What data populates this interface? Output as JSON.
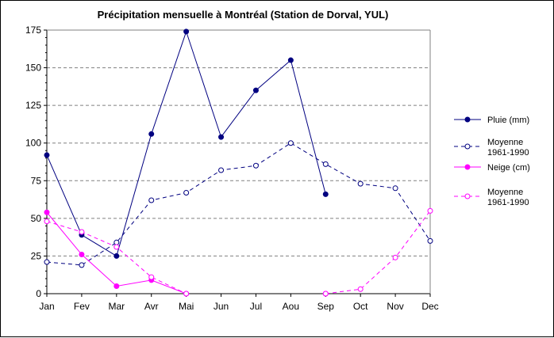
{
  "chart_data": {
    "type": "line",
    "title": "Précipitation mensuelle à Montréal (Station de Dorval, YUL)",
    "categories": [
      "Jan",
      "Fev",
      "Mar",
      "Avr",
      "Mai",
      "Jun",
      "Jul",
      "Aou",
      "Sep",
      "Oct",
      "Nov",
      "Dec"
    ],
    "ylim": [
      0,
      175
    ],
    "yticks": [
      0,
      25,
      50,
      75,
      100,
      125,
      150,
      175
    ],
    "ytick_labels": [
      "0",
      "25",
      "50",
      "75",
      "100",
      "125",
      "150",
      "175"
    ],
    "grid": "horizontal dashed",
    "legend_position": "right",
    "series": [
      {
        "name": "Pluie (mm)",
        "legend_lines": [
          "Pluie (mm)"
        ],
        "color": "#000080",
        "line_style": "solid",
        "marker": "filled-circle",
        "values": [
          92,
          39,
          25,
          106,
          174,
          104,
          135,
          155,
          66,
          null,
          null,
          null
        ]
      },
      {
        "name": "Moyenne 1961-1990",
        "legend_lines": [
          "Moyenne",
          "1961-1990"
        ],
        "color": "#000080",
        "line_style": "dashed",
        "marker": "open-circle",
        "values": [
          21,
          19,
          34,
          62,
          67,
          82,
          85,
          100,
          86,
          73,
          70,
          35
        ]
      },
      {
        "name": "Neige (cm)",
        "legend_lines": [
          "Neige (cm)"
        ],
        "color": "#ff00ff",
        "line_style": "solid",
        "marker": "filled-circle",
        "values": [
          54,
          26,
          5,
          9,
          0,
          null,
          null,
          null,
          0,
          null,
          null,
          null
        ]
      },
      {
        "name": "Moyenne 1961-1990",
        "legend_lines": [
          "Moyenne",
          "1961-1990"
        ],
        "color": "#ff00ff",
        "line_style": "dashed",
        "marker": "open-circle",
        "values": [
          48,
          41,
          31,
          11,
          0,
          null,
          null,
          null,
          0,
          3,
          24,
          55
        ]
      }
    ]
  }
}
